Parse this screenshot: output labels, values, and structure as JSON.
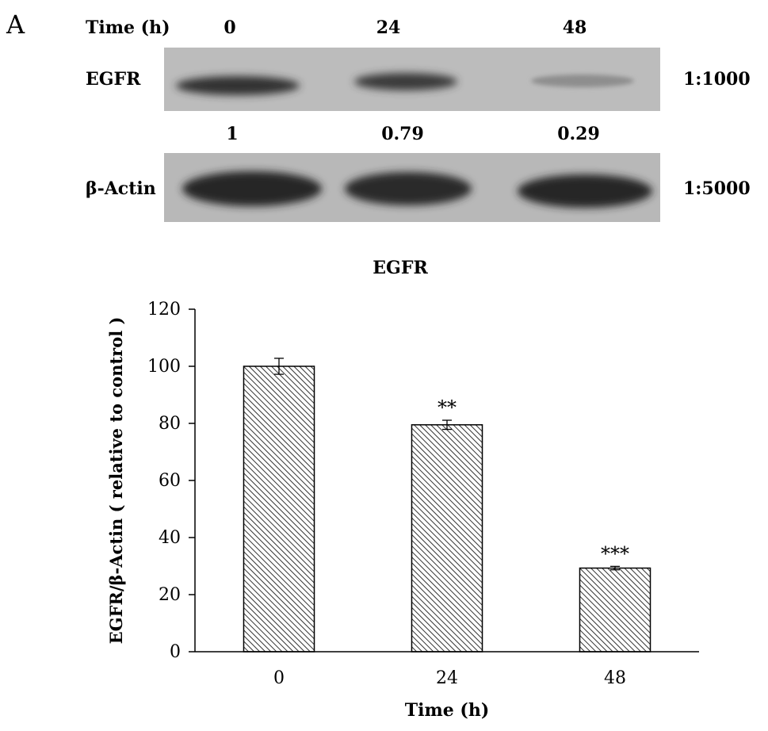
{
  "panel_label": "A",
  "blot": {
    "time_label": "Time (h)",
    "lanes": [
      "0",
      "24",
      "48"
    ],
    "rows": [
      {
        "label": "EGFR",
        "dilution": "1:1000",
        "intensities": [
          0.85,
          0.75,
          0.22
        ]
      },
      {
        "label": "β-Actin",
        "dilution": "1:5000",
        "intensities": [
          0.95,
          0.9,
          0.92
        ]
      }
    ],
    "ratios": [
      "1",
      "0.79",
      "0.29"
    ]
  },
  "chart_data": {
    "type": "bar",
    "title": "EGFR",
    "xlabel": "Time (h)",
    "ylabel": "EGFR/β-Actin ( relative to control )",
    "categories": [
      "0",
      "24",
      "48"
    ],
    "values": [
      100,
      79.5,
      29.3
    ],
    "errors": [
      2.8,
      1.6,
      0.6
    ],
    "annotations": [
      "",
      "**",
      "***"
    ],
    "ylim": [
      0,
      120
    ],
    "yticks": [
      "0",
      "20",
      "40",
      "60",
      "80",
      "100",
      "120"
    ],
    "ytick_values": [
      0,
      20,
      40,
      60,
      80,
      100,
      120
    ],
    "grid": false,
    "bar_fill": "hatched"
  }
}
